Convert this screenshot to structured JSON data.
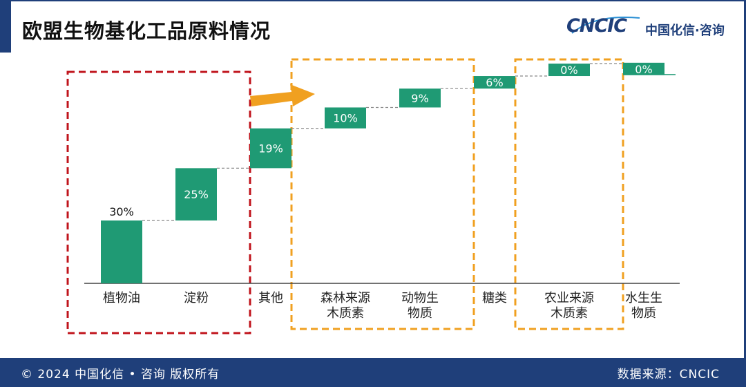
{
  "header": {
    "title": "欧盟生物基化工品原料情况",
    "logo_mark": "CNCIC",
    "logo_cn": "中国化信·咨询"
  },
  "footer": {
    "copyright": "© 2024 中国化信 • 咨询  版权所有",
    "source": "数据来源：CNCIC"
  },
  "colors": {
    "bar": "#1f9a74",
    "red_box": "#c0141c",
    "orange_box": "#f0a020",
    "arrow": "#f0a020",
    "brand": "#1f3f7a"
  },
  "chart_data": {
    "type": "bar",
    "subtype": "waterfall",
    "categories": [
      [
        "植物油"
      ],
      [
        "淀粉"
      ],
      [
        "其他"
      ],
      [
        "森林来源",
        "木质素"
      ],
      [
        "动物生",
        "物质"
      ],
      [
        "糖类"
      ],
      [
        "农业来源",
        "木质素"
      ],
      [
        "水生生",
        "物质"
      ]
    ],
    "values": [
      30,
      25,
      19,
      10,
      9,
      6,
      0.4,
      0.3
    ],
    "data_labels": [
      "30%",
      "25%",
      "19%",
      "10%",
      "9%",
      "6%",
      "0%",
      "0%"
    ],
    "ylim": [
      0,
      100
    ],
    "highlight_groups": [
      {
        "color": "red",
        "first": 0,
        "last": 1
      },
      {
        "color": "orange",
        "first": 3,
        "last": 4
      },
      {
        "color": "orange",
        "first": 6,
        "last": 6
      }
    ],
    "grid": false
  }
}
